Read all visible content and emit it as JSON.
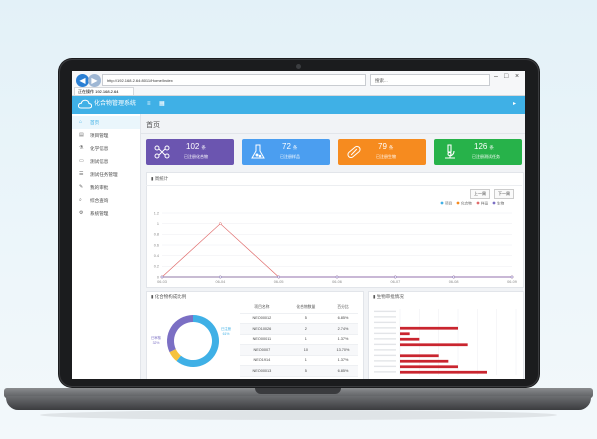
{
  "browser": {
    "address": "http://192.168.2.64:8011/Home/Index",
    "search_placeholder": "搜索...",
    "tab_title": "正在操作 192.168.2.64"
  },
  "app": {
    "title": "化合物管理系统"
  },
  "sidebar": {
    "items": [
      {
        "label": "首页",
        "icon": "home-icon"
      },
      {
        "label": "项目管理",
        "icon": "briefcase-icon"
      },
      {
        "label": "化学信息",
        "icon": "flask-icon"
      },
      {
        "label": "测试信息",
        "icon": "document-icon"
      },
      {
        "label": "测试任务管理",
        "icon": "task-icon"
      },
      {
        "label": "我的审批",
        "icon": "edit-icon"
      },
      {
        "label": "综合查询",
        "icon": "search-icon"
      },
      {
        "label": "系统管理",
        "icon": "gear-icon"
      }
    ]
  },
  "page": {
    "title": "首页"
  },
  "cards": [
    {
      "value": "102",
      "unit": "条",
      "label": "已注册化合物",
      "color": "#6b55b0",
      "icon": "molecule-icon"
    },
    {
      "value": "72",
      "unit": "条",
      "label": "已注册样品",
      "color": "#4b9ef0",
      "icon": "beaker-icon"
    },
    {
      "value": "79",
      "unit": "条",
      "label": "已注册生物",
      "color": "#f68b1f",
      "icon": "capsule-icon"
    },
    {
      "value": "126",
      "unit": "条",
      "label": "已注册测试任务",
      "color": "#27b24a",
      "icon": "microscope-icon"
    }
  ],
  "trend": {
    "title": "周统计",
    "prev_label": "上一周",
    "next_label": "下一周"
  },
  "chart_data": [
    {
      "type": "line",
      "categories": [
        "06-03",
        "06-04",
        "06-05",
        "06-06",
        "06-07",
        "06-08",
        "06-09"
      ],
      "ylim": [
        0,
        1.2
      ],
      "yticks": [
        "0",
        "0.2",
        "0.4",
        "0.6",
        "0.8",
        "1",
        "1.2"
      ],
      "grid": true,
      "legend_position": "top-right",
      "series": [
        {
          "name": "项目",
          "color": "#3fb0e6",
          "values": [
            0,
            0,
            0,
            0,
            0,
            0,
            0
          ]
        },
        {
          "name": "化合物",
          "color": "#f68b1f",
          "values": [
            0,
            0,
            0,
            0,
            0,
            0,
            0
          ]
        },
        {
          "name": "样品",
          "color": "#e06c6c",
          "values": [
            0,
            1,
            0,
            0,
            0,
            0,
            0
          ]
        },
        {
          "name": "生物",
          "color": "#7b6fc4",
          "values": [
            0,
            0,
            0,
            0,
            0,
            0,
            0
          ]
        }
      ]
    },
    {
      "type": "pie",
      "title": "化合物构成比例",
      "slices": [
        {
          "label": "已注册",
          "value": 61,
          "color": "#3fb0e6"
        },
        {
          "label": "已审核",
          "value": 7,
          "color": "#f6c23e"
        },
        {
          "label": "其它",
          "value": 32,
          "color": "#7b6fc4"
        }
      ],
      "slice_labels": [
        "已审核",
        "已注册",
        "61%",
        "32%"
      ]
    },
    {
      "type": "table",
      "columns": [
        "项目名称",
        "化合物数量",
        "百分比"
      ],
      "rows": [
        [
          "NEO00012",
          "5",
          "6.85%"
        ],
        [
          "NEO10026",
          "2",
          "2.74%"
        ],
        [
          "NEO00011",
          "1",
          "1.37%"
        ],
        [
          "NEO0007",
          "10",
          "13.70%"
        ],
        [
          "NEO1914",
          "1",
          "1.37%"
        ],
        [
          "NEO00013",
          "5",
          "6.85%"
        ]
      ]
    },
    {
      "type": "bar",
      "orientation": "horizontal",
      "title": "生物审批情况",
      "categories": [
        "",
        "",
        "",
        "",
        "",
        "",
        "",
        "",
        "",
        "",
        "",
        ""
      ],
      "values": [
        0,
        0,
        0,
        6,
        1,
        2,
        7,
        0,
        4,
        5,
        6,
        9
      ],
      "xlim": [
        0,
        12
      ],
      "color": "#c9252f"
    }
  ]
}
